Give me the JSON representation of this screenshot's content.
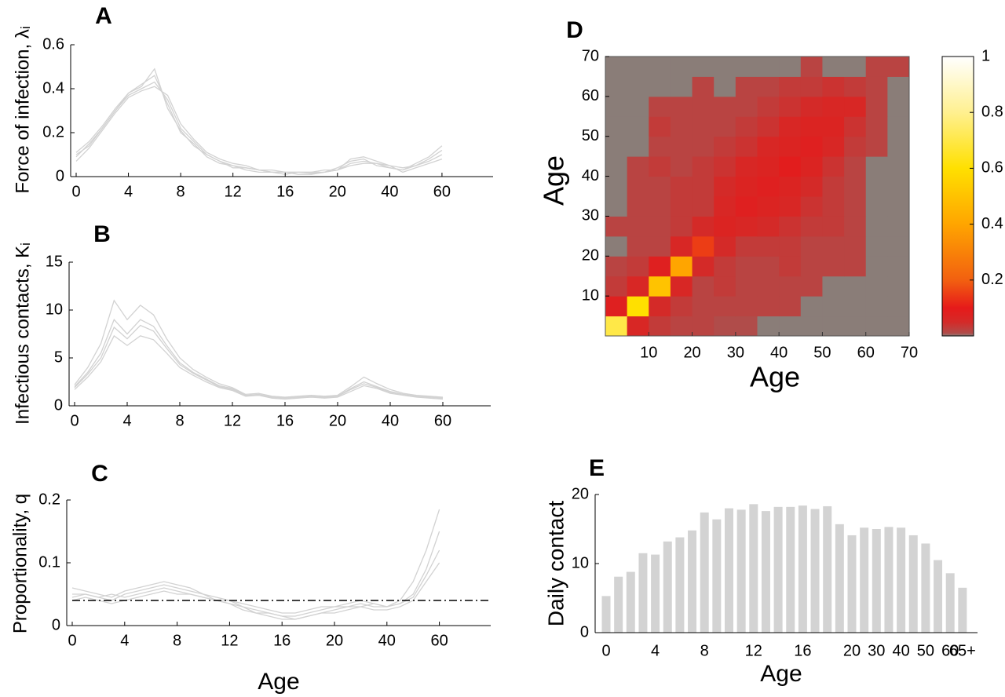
{
  "chart_data": [
    {
      "type": "line",
      "title": "A",
      "ylabel": "Force of infection, λᵢ",
      "categories": [
        "0",
        null,
        null,
        null,
        "4",
        null,
        null,
        null,
        "8",
        null,
        null,
        null,
        "12",
        null,
        null,
        null,
        "16",
        null,
        null,
        null,
        "20",
        null,
        null,
        null,
        "40",
        null,
        null,
        null,
        "60"
      ],
      "series": [
        {
          "color": "#d2d2d2",
          "values": [
            0.09,
            0.15,
            0.22,
            0.3,
            0.37,
            0.4,
            0.43,
            0.35,
            0.22,
            0.16,
            0.1,
            0.07,
            0.05,
            0.04,
            0.03,
            0.02,
            0.02,
            0.02,
            0.015,
            0.02,
            0.03,
            0.06,
            0.07,
            0.06,
            0.04,
            0.03,
            0.05,
            0.07,
            0.1
          ]
        },
        {
          "color": "#d2d2d2",
          "values": [
            0.11,
            0.16,
            0.23,
            0.31,
            0.38,
            0.42,
            0.46,
            0.33,
            0.2,
            0.15,
            0.09,
            0.06,
            0.05,
            0.03,
            0.02,
            0.02,
            0.01,
            0.02,
            0.02,
            0.02,
            0.04,
            0.07,
            0.08,
            0.05,
            0.04,
            0.03,
            0.06,
            0.09,
            0.14
          ]
        },
        {
          "color": "#d2d2d2",
          "values": [
            0.07,
            0.13,
            0.21,
            0.29,
            0.36,
            0.39,
            0.41,
            0.37,
            0.24,
            0.17,
            0.11,
            0.08,
            0.06,
            0.05,
            0.03,
            0.03,
            0.02,
            0.01,
            0.01,
            0.02,
            0.03,
            0.05,
            0.06,
            0.06,
            0.05,
            0.02,
            0.04,
            0.06,
            0.08
          ]
        },
        {
          "color": "#d2d2d2",
          "values": [
            0.1,
            0.14,
            0.22,
            0.3,
            0.38,
            0.41,
            0.49,
            0.31,
            0.21,
            0.14,
            0.1,
            0.07,
            0.04,
            0.04,
            0.03,
            0.02,
            0.02,
            0.02,
            0.02,
            0.03,
            0.03,
            0.08,
            0.09,
            0.07,
            0.05,
            0.04,
            0.05,
            0.08,
            0.12
          ]
        }
      ],
      "ylim": [
        0,
        0.6
      ],
      "yticks": [
        0,
        0.2,
        0.4,
        0.6
      ]
    },
    {
      "type": "line",
      "title": "B",
      "ylabel": "Infectious contacts, Kᵢ",
      "categories": [
        "0",
        null,
        null,
        null,
        "4",
        null,
        null,
        null,
        "8",
        null,
        null,
        null,
        "12",
        null,
        null,
        null,
        "16",
        null,
        null,
        null,
        "20",
        null,
        null,
        null,
        "40",
        null,
        null,
        null,
        "60"
      ],
      "series": [
        {
          "color": "#d2d2d2",
          "values": [
            2.0,
            3.5,
            5.5,
            9.0,
            7.5,
            9.0,
            8.3,
            6.3,
            4.5,
            3.5,
            2.8,
            2.1,
            1.8,
            1.1,
            1.2,
            0.9,
            0.8,
            0.9,
            1.0,
            0.9,
            1.0,
            1.8,
            2.5,
            2.0,
            1.5,
            1.2,
            1.0,
            0.9,
            0.8
          ]
        },
        {
          "color": "#d2d2d2",
          "values": [
            2.2,
            4.0,
            6.5,
            11.0,
            9.0,
            10.5,
            9.5,
            7.0,
            5.0,
            3.8,
            3.0,
            2.3,
            1.9,
            1.2,
            1.3,
            1.0,
            0.9,
            1.0,
            1.1,
            1.0,
            1.1,
            2.0,
            3.0,
            2.3,
            1.7,
            1.3,
            1.1,
            1.0,
            0.9
          ]
        },
        {
          "color": "#d2d2d2",
          "values": [
            1.7,
            3.0,
            4.6,
            7.3,
            6.3,
            7.3,
            6.9,
            5.5,
            4.0,
            3.2,
            2.5,
            1.9,
            1.6,
            1.0,
            1.1,
            0.8,
            0.7,
            0.8,
            0.9,
            0.8,
            0.9,
            1.5,
            2.1,
            1.8,
            1.3,
            1.1,
            0.9,
            0.8,
            0.7
          ]
        },
        {
          "color": "#d2d2d2",
          "values": [
            1.9,
            3.3,
            5.0,
            8.2,
            7.0,
            8.4,
            7.8,
            6.0,
            4.3,
            3.4,
            2.7,
            2.0,
            1.7,
            1.1,
            1.1,
            0.9,
            0.8,
            0.9,
            0.9,
            0.9,
            1.0,
            1.7,
            2.3,
            1.9,
            1.4,
            1.2,
            1.0,
            0.9,
            0.8
          ]
        }
      ],
      "ylim": [
        0,
        15
      ],
      "yticks": [
        0,
        5,
        10,
        15
      ]
    },
    {
      "type": "line",
      "title": "C",
      "ylabel": "Proportionality, q",
      "xlabel": "Age",
      "categories": [
        "0",
        null,
        null,
        null,
        "4",
        null,
        null,
        null,
        "8",
        null,
        null,
        null,
        "12",
        null,
        null,
        null,
        "16",
        null,
        null,
        null,
        "20",
        null,
        null,
        null,
        "40",
        null,
        null,
        null,
        "60"
      ],
      "series": [
        {
          "color": "#d2d2d2",
          "values": [
            0.05,
            0.05,
            0.045,
            0.04,
            0.05,
            0.055,
            0.06,
            0.065,
            0.06,
            0.055,
            0.05,
            0.045,
            0.04,
            0.03,
            0.025,
            0.02,
            0.015,
            0.015,
            0.02,
            0.025,
            0.03,
            0.03,
            0.035,
            0.03,
            0.03,
            0.035,
            0.05,
            0.09,
            0.15
          ]
        },
        {
          "color": "#d2d2d2",
          "values": [
            0.06,
            0.055,
            0.05,
            0.045,
            0.055,
            0.06,
            0.065,
            0.07,
            0.065,
            0.06,
            0.05,
            0.04,
            0.035,
            0.03,
            0.02,
            0.015,
            0.01,
            0.01,
            0.015,
            0.02,
            0.025,
            0.03,
            0.03,
            0.035,
            0.03,
            0.04,
            0.07,
            0.12,
            0.185
          ]
        },
        {
          "color": "#d2d2d2",
          "values": [
            0.04,
            0.045,
            0.04,
            0.035,
            0.04,
            0.045,
            0.05,
            0.055,
            0.05,
            0.05,
            0.045,
            0.04,
            0.035,
            0.025,
            0.02,
            0.02,
            0.015,
            0.01,
            0.015,
            0.02,
            0.02,
            0.025,
            0.03,
            0.025,
            0.025,
            0.03,
            0.04,
            0.07,
            0.1
          ]
        },
        {
          "color": "#d2d2d2",
          "values": [
            0.045,
            0.05,
            0.045,
            0.05,
            0.045,
            0.05,
            0.055,
            0.06,
            0.055,
            0.05,
            0.045,
            0.04,
            0.04,
            0.035,
            0.03,
            0.025,
            0.02,
            0.02,
            0.025,
            0.03,
            0.03,
            0.035,
            0.04,
            0.035,
            0.03,
            0.035,
            0.045,
            0.08,
            0.12
          ]
        }
      ],
      "reference_line": 0.04,
      "reference_color": "#000000",
      "ylim": [
        0,
        0.2
      ],
      "yticks": [
        0,
        0.1,
        0.2
      ]
    },
    {
      "type": "heatmap",
      "title": "D",
      "xlabel": "Age",
      "ylabel": "Age",
      "xbins": [
        0,
        5,
        10,
        15,
        20,
        25,
        30,
        35,
        40,
        45,
        50,
        55,
        60,
        65,
        70
      ],
      "ybins": [
        0,
        5,
        10,
        15,
        20,
        25,
        30,
        35,
        40,
        45,
        50,
        55,
        60,
        65,
        70
      ],
      "z": [
        [
          0.7,
          0.06,
          0.03,
          0.02,
          0.02,
          0.01,
          0.01,
          0,
          0,
          0,
          0,
          0,
          0,
          0
        ],
        [
          0.08,
          0.6,
          0.05,
          0.03,
          0.02,
          0.02,
          0.02,
          0.02,
          0.02,
          0,
          0,
          0,
          0,
          0
        ],
        [
          0.03,
          0.06,
          0.5,
          0.06,
          0.02,
          0.03,
          0.02,
          0.02,
          0.02,
          0.02,
          0,
          0,
          0,
          0
        ],
        [
          0.02,
          0.03,
          0.08,
          0.4,
          0.05,
          0.03,
          0.02,
          0.02,
          0.03,
          0.02,
          0.02,
          0.02,
          0,
          0
        ],
        [
          0,
          0.02,
          0.02,
          0.06,
          0.15,
          0.05,
          0.03,
          0.03,
          0.03,
          0.02,
          0.02,
          0.02,
          0,
          0
        ],
        [
          0.02,
          0.02,
          0.02,
          0.03,
          0.05,
          0.07,
          0.06,
          0.05,
          0.04,
          0.03,
          0.03,
          0.02,
          0,
          0
        ],
        [
          0,
          0.02,
          0.02,
          0.03,
          0.03,
          0.06,
          0.08,
          0.07,
          0.06,
          0.04,
          0.03,
          0.02,
          0,
          0
        ],
        [
          0,
          0.02,
          0.02,
          0.03,
          0.03,
          0.05,
          0.07,
          0.08,
          0.07,
          0.05,
          0.03,
          0.02,
          0,
          0
        ],
        [
          0,
          0.02,
          0.03,
          0.02,
          0.03,
          0.04,
          0.06,
          0.07,
          0.09,
          0.07,
          0.04,
          0.02,
          0,
          0
        ],
        [
          0,
          0,
          0.02,
          0.02,
          0.02,
          0.03,
          0.04,
          0.06,
          0.07,
          0.08,
          0.06,
          0.03,
          0.02,
          0
        ],
        [
          0,
          0,
          0.03,
          0.02,
          0.02,
          0.02,
          0.03,
          0.04,
          0.06,
          0.07,
          0.07,
          0.04,
          0.02,
          0
        ],
        [
          0,
          0,
          0.02,
          0.02,
          0.02,
          0.02,
          0.02,
          0.03,
          0.04,
          0.05,
          0.06,
          0.06,
          0.02,
          0
        ],
        [
          0,
          0,
          0,
          0,
          0.02,
          0,
          0.02,
          0.02,
          0.03,
          0.03,
          0.04,
          0.03,
          0.02,
          0
        ],
        [
          0,
          0,
          0,
          0,
          0,
          0,
          0,
          0,
          0,
          0.02,
          0,
          0,
          0.02,
          0.02
        ]
      ],
      "colorscale": [
        [
          0,
          "#8a7d78"
        ],
        [
          0.01,
          "#b04c4a"
        ],
        [
          0.05,
          "#d42a28"
        ],
        [
          0.1,
          "#e61a1a"
        ],
        [
          0.2,
          "#f26010"
        ],
        [
          0.4,
          "#ffa500"
        ],
        [
          0.6,
          "#ffe000"
        ],
        [
          0.8,
          "#fff090"
        ],
        [
          1,
          "#ffffff"
        ]
      ],
      "xlim": [
        0,
        70
      ],
      "ylim": [
        0,
        70
      ],
      "xticks": [
        10,
        20,
        30,
        40,
        50,
        60,
        70
      ],
      "yticks": [
        10,
        20,
        30,
        40,
        50,
        60,
        70
      ],
      "clim": [
        0,
        1
      ],
      "cticks": [
        0.2,
        0.4,
        0.6,
        0.8,
        1
      ]
    },
    {
      "type": "bar",
      "title": "E",
      "ylabel": "Daily contact",
      "xlabel": "Age",
      "categories": [
        "0",
        null,
        null,
        null,
        "4",
        null,
        null,
        null,
        "8",
        null,
        null,
        null,
        "12",
        null,
        null,
        null,
        "16",
        null,
        null,
        null,
        "20",
        null,
        "30",
        null,
        "40",
        null,
        "50",
        null,
        "60",
        "65+"
      ],
      "values": [
        5.3,
        8.1,
        8.8,
        11.5,
        11.3,
        13.2,
        13.8,
        14.8,
        17.4,
        16.4,
        18.0,
        17.8,
        18.6,
        17.6,
        18.2,
        18.2,
        18.4,
        17.9,
        18.3,
        15.7,
        14.1,
        15.2,
        15.0,
        15.3,
        15.2,
        14.1,
        12.9,
        10.5,
        8.6,
        6.5
      ],
      "color": "#d3d3d3",
      "ylim": [
        0,
        20
      ],
      "yticks": [
        0,
        10,
        20
      ]
    }
  ]
}
